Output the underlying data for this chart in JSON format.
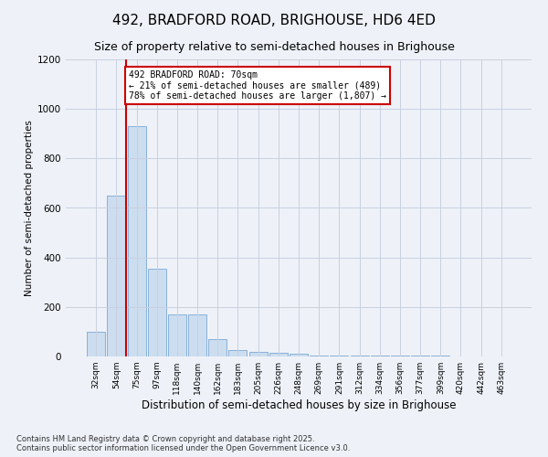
{
  "title1": "492, BRADFORD ROAD, BRIGHOUSE, HD6 4ED",
  "title2": "Size of property relative to semi-detached houses in Brighouse",
  "xlabel": "Distribution of semi-detached houses by size in Brighouse",
  "ylabel": "Number of semi-detached properties",
  "footnote": "Contains HM Land Registry data © Crown copyright and database right 2025.\nContains public sector information licensed under the Open Government Licence v3.0.",
  "bar_labels": [
    "32sqm",
    "54sqm",
    "75sqm",
    "97sqm",
    "118sqm",
    "140sqm",
    "162sqm",
    "183sqm",
    "205sqm",
    "226sqm",
    "248sqm",
    "269sqm",
    "291sqm",
    "312sqm",
    "334sqm",
    "356sqm",
    "377sqm",
    "399sqm",
    "420sqm",
    "442sqm",
    "463sqm"
  ],
  "bar_values": [
    100,
    650,
    930,
    355,
    170,
    170,
    70,
    25,
    20,
    15,
    10,
    5,
    3,
    3,
    3,
    2,
    2,
    2,
    1,
    1,
    1
  ],
  "bar_color": "#ccddf0",
  "bar_edge_color": "#7aa8d4",
  "property_line_x": 1.5,
  "annotation_text": "492 BRADFORD ROAD: 70sqm\n← 21% of semi-detached houses are smaller (489)\n78% of semi-detached houses are larger (1,807) →",
  "annotation_box_color": "#cc0000",
  "annotation_box_bg": "#ffffff",
  "ylim": [
    0,
    1200
  ],
  "yticks": [
    0,
    200,
    400,
    600,
    800,
    1000,
    1200
  ],
  "grid_color": "#c8d0e0",
  "bg_color": "#eef2f8",
  "title1_fontsize": 11,
  "title2_fontsize": 9,
  "footnote_fontsize": 6
}
